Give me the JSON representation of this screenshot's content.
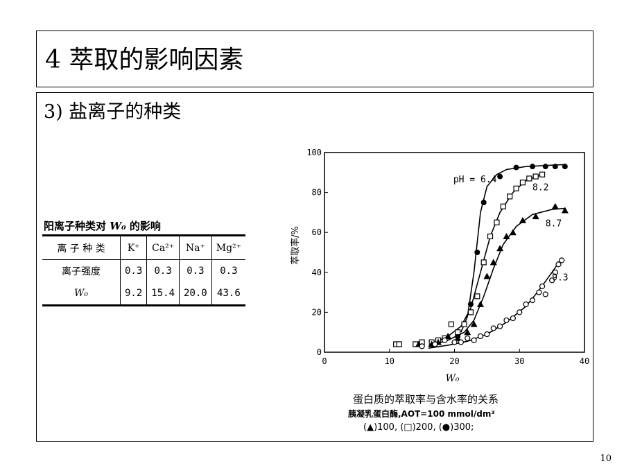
{
  "slide": {
    "title": "4 萃取的影响因素",
    "section_heading": "3) 盐离子的种类",
    "page_number": "10"
  },
  "table": {
    "title_prefix": "阳离子种类对 ",
    "title_var": "W₀",
    "title_suffix": " 的影响",
    "header": [
      "离 子 种 类",
      "K⁺",
      "Ca²⁺",
      "Na⁺",
      "Mg²⁺"
    ],
    "rows": [
      {
        "label": "离子强度",
        "values": [
          "0.3",
          "0.3",
          "0.3",
          "0.3"
        ]
      },
      {
        "label": "W₀",
        "values": [
          "9.2",
          "15.4",
          "20.0",
          "43.6"
        ]
      }
    ]
  },
  "figure": {
    "caption_line1": "蛋白质的萃取率与含水率的关系",
    "caption_line2": "胰凝乳蛋白酶,AOT=100 mmol/dm³",
    "caption_line3": "(▲)100, (□)200, (●)300;"
  },
  "chart_data": {
    "type": "scatter",
    "title": "",
    "xlabel": "W₀",
    "ylabel": "萃取率/%",
    "xlim": [
      0,
      40
    ],
    "ylim": [
      0,
      100
    ],
    "x_ticks": [
      "0",
      "10",
      "20",
      "30",
      "40"
    ],
    "y_ticks": [
      "0",
      "20",
      "40",
      "60",
      "80",
      "100"
    ],
    "grid": false,
    "series": [
      {
        "name": "pH = 6.4",
        "marker": "filled-circle",
        "points": [
          [
            20.5,
            8
          ],
          [
            21.5,
            14
          ],
          [
            22.5,
            24
          ],
          [
            23.5,
            50
          ],
          [
            24.5,
            75
          ],
          [
            27,
            88
          ],
          [
            29.5,
            92.5
          ],
          [
            32,
            93
          ],
          [
            34,
            93
          ],
          [
            35.5,
            93
          ],
          [
            37,
            93
          ]
        ],
        "curve": [
          [
            21,
            10
          ],
          [
            22,
            18
          ],
          [
            23,
            40
          ],
          [
            24,
            70
          ],
          [
            25,
            83
          ],
          [
            26.5,
            89
          ],
          [
            28,
            91.5
          ],
          [
            31,
            93
          ],
          [
            34,
            93.5
          ],
          [
            37,
            94
          ]
        ]
      },
      {
        "name": "8.2",
        "marker": "open-square",
        "points": [
          [
            11,
            4
          ],
          [
            11.5,
            4
          ],
          [
            14,
            4
          ],
          [
            15,
            5
          ],
          [
            16.5,
            5
          ],
          [
            17.5,
            6
          ],
          [
            18.5,
            7
          ],
          [
            19.5,
            14
          ],
          [
            20.5,
            10
          ],
          [
            21.5,
            14
          ],
          [
            22.5,
            20
          ],
          [
            23.5,
            28
          ],
          [
            24.5,
            45
          ],
          [
            25.5,
            58
          ],
          [
            26.5,
            65
          ],
          [
            27.5,
            73
          ],
          [
            28.5,
            78
          ],
          [
            29.5,
            82
          ],
          [
            30.5,
            85
          ],
          [
            31.5,
            87
          ],
          [
            32.5,
            88
          ],
          [
            33.5,
            89
          ]
        ],
        "curve": [
          [
            17,
            5
          ],
          [
            19,
            8
          ],
          [
            21,
            13
          ],
          [
            22.5,
            22
          ],
          [
            24,
            40
          ],
          [
            25.5,
            58
          ],
          [
            27,
            70
          ],
          [
            29,
            80
          ],
          [
            31,
            86
          ],
          [
            33.5,
            89
          ]
        ]
      },
      {
        "name": "8.7",
        "marker": "filled-triangle",
        "points": [
          [
            14.5,
            4
          ],
          [
            16.5,
            4
          ],
          [
            17.5,
            5
          ],
          [
            19,
            8
          ],
          [
            20.5,
            7
          ],
          [
            22,
            10
          ],
          [
            23,
            14
          ],
          [
            24,
            24
          ],
          [
            25,
            38
          ],
          [
            26,
            45
          ],
          [
            27,
            52
          ],
          [
            28,
            58
          ],
          [
            29,
            60
          ],
          [
            30.5,
            66
          ],
          [
            32.5,
            68
          ],
          [
            35.5,
            73
          ],
          [
            37,
            71
          ]
        ],
        "curve": [
          [
            16,
            3
          ],
          [
            19,
            6
          ],
          [
            21.5,
            10
          ],
          [
            23,
            16
          ],
          [
            24.5,
            28
          ],
          [
            26,
            42
          ],
          [
            27.5,
            54
          ],
          [
            29.5,
            63
          ],
          [
            32,
            69
          ],
          [
            35,
            71.5
          ],
          [
            37,
            72
          ]
        ]
      },
      {
        "name": "9.3",
        "marker": "open-circle",
        "points": [
          [
            15,
            3
          ],
          [
            17,
            4
          ],
          [
            18.5,
            6
          ],
          [
            20,
            5
          ],
          [
            21,
            5
          ],
          [
            22,
            7
          ],
          [
            23,
            6
          ],
          [
            24,
            8
          ],
          [
            25,
            9
          ],
          [
            26,
            12
          ],
          [
            27,
            13
          ],
          [
            28,
            16
          ],
          [
            29,
            17
          ],
          [
            30,
            20
          ],
          [
            31,
            24
          ],
          [
            32,
            26
          ],
          [
            33,
            30
          ],
          [
            33.5,
            33
          ],
          [
            34,
            29
          ],
          [
            35,
            36
          ],
          [
            35.5,
            40
          ],
          [
            36,
            44
          ],
          [
            36.5,
            46
          ]
        ],
        "curve": [
          [
            16,
            2
          ],
          [
            19,
            3.5
          ],
          [
            22,
            5.5
          ],
          [
            25,
            9
          ],
          [
            28,
            15
          ],
          [
            31,
            23
          ],
          [
            33,
            31
          ],
          [
            35,
            40
          ],
          [
            36.5,
            47
          ]
        ]
      }
    ]
  }
}
